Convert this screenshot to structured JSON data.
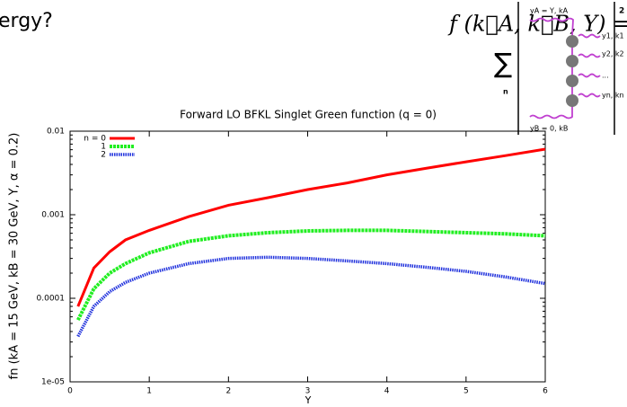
{
  "slide": {
    "heading_fragment": "ergy?",
    "formula_lhs": "f (k⃗A, k⃗B, Y) =",
    "sum_symbol": "∑",
    "sum_index": "n",
    "exponent": "2",
    "diagram_labels": [
      "yA = Y, kA",
      "y1, k1",
      "y2, k2",
      "...",
      "yn, kn",
      "yB = 0, kB"
    ]
  },
  "chart_data": {
    "type": "line",
    "title": "Forward LO BFKL Singlet Green function (q = 0)",
    "x_label": "Y",
    "y_label": "fn (kA = 15 GeV, kB = 30 GeV, Y, α = 0.2)",
    "x": [
      0.1,
      0.3,
      0.5,
      0.7,
      1,
      1.5,
      2,
      2.5,
      3,
      3.5,
      4,
      4.5,
      5,
      5.5,
      6
    ],
    "series": [
      {
        "name": "n = 0",
        "color": "#ff0000",
        "values": [
          8e-05,
          0.00023,
          0.00036,
          0.0005,
          0.00065,
          0.00095,
          0.0013,
          0.0016,
          0.002,
          0.0024,
          0.003,
          0.0036,
          0.0043,
          0.0051,
          0.0061
        ]
      },
      {
        "name": "1",
        "color": "#22ee22",
        "values": [
          5.5e-05,
          0.00013,
          0.0002,
          0.00026,
          0.00035,
          0.00048,
          0.00056,
          0.00061,
          0.00064,
          0.00065,
          0.00065,
          0.00063,
          0.00061,
          0.00059,
          0.00056
        ]
      },
      {
        "name": "2",
        "color": "#2233dd",
        "values": [
          3.5e-05,
          8e-05,
          0.00012,
          0.000155,
          0.0002,
          0.00026,
          0.0003,
          0.00031,
          0.0003,
          0.00028,
          0.00026,
          0.000235,
          0.00021,
          0.00018,
          0.00015
        ]
      }
    ],
    "xlim": [
      0,
      6
    ],
    "xticks": [
      0,
      1,
      2,
      3,
      4,
      5,
      6
    ],
    "ylim": [
      1e-05,
      0.01
    ],
    "y_scale": "log",
    "yticks": [
      {
        "value": 1e-05,
        "label": "1e-05"
      },
      0.0001,
      0.001,
      0.01
    ],
    "legend": "upper left"
  }
}
